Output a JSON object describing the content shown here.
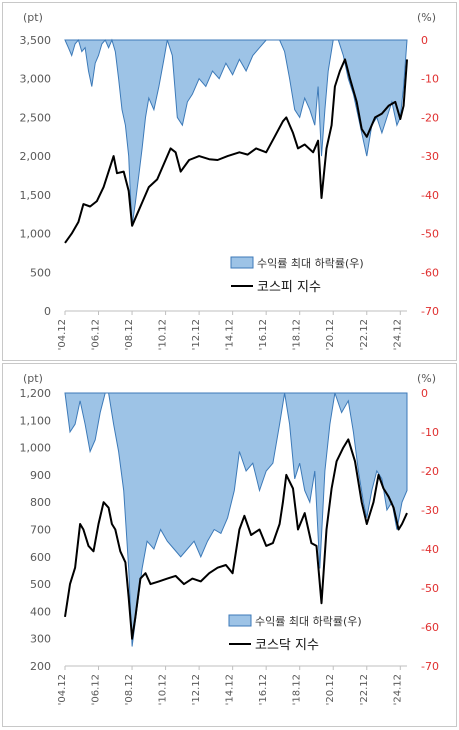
{
  "chart_data": [
    {
      "type": "line",
      "left_unit": "(pt)",
      "right_unit": "(%)",
      "left_ticks": [
        "0",
        "500",
        "1,000",
        "1,500",
        "2,000",
        "2,500",
        "3,000",
        "3,500"
      ],
      "right_ticks": [
        "0",
        "-10",
        "-20",
        "-30",
        "-40",
        "-50",
        "-60",
        "-70"
      ],
      "ylim_left": [
        0,
        3500
      ],
      "ylim_right": [
        -70,
        0
      ],
      "x_ticks": [
        "'04.12",
        "'06.12",
        "'08.12",
        "'10.12",
        "'12.12",
        "'14.12",
        "'16.12",
        "'18.12",
        "'20.12",
        "'22.12",
        "'24.12"
      ],
      "xlim": [
        2004.9,
        2025.3
      ],
      "legend": [
        "수익률 최대 하락률(우)",
        "코스피 지수"
      ],
      "colors": {
        "area": "#9dc3e6",
        "area_edge": "#3d7ab8",
        "line": "#000000",
        "right_axis": "#e03030"
      },
      "series": [
        {
          "name": "코스피 지수",
          "axis": "left",
          "x": [
            2004.9,
            2005.3,
            2005.7,
            2006.0,
            2006.4,
            2006.8,
            2007.2,
            2007.5,
            2007.8,
            2008.0,
            2008.4,
            2008.7,
            2008.9,
            2009.2,
            2009.5,
            2009.9,
            2010.4,
            2010.8,
            2011.2,
            2011.5,
            2011.8,
            2012.3,
            2012.9,
            2013.5,
            2014.0,
            2014.6,
            2015.3,
            2015.8,
            2016.3,
            2016.9,
            2017.4,
            2017.9,
            2018.1,
            2018.5,
            2018.8,
            2019.2,
            2019.7,
            2020.0,
            2020.2,
            2020.5,
            2020.8,
            2021.0,
            2021.3,
            2021.6,
            2021.9,
            2022.3,
            2022.6,
            2022.9,
            2023.4,
            2023.8,
            2024.2,
            2024.6,
            2024.9,
            2025.1,
            2025.3
          ],
          "values": [
            880,
            1000,
            1150,
            1380,
            1350,
            1420,
            1600,
            1800,
            2000,
            1780,
            1800,
            1550,
            1100,
            1250,
            1400,
            1600,
            1700,
            1900,
            2100,
            2050,
            1800,
            1950,
            2000,
            1960,
            1950,
            2000,
            2050,
            2020,
            2100,
            2050,
            2250,
            2450,
            2500,
            2300,
            2100,
            2150,
            2050,
            2200,
            1460,
            2100,
            2400,
            2900,
            3100,
            3250,
            3000,
            2700,
            2350,
            2250,
            2500,
            2550,
            2650,
            2700,
            2480,
            2650,
            3250
          ]
        },
        {
          "name": "수익률 최대 하락률(우)",
          "axis": "right",
          "x": [
            2004.9,
            2005.1,
            2005.3,
            2005.5,
            2005.7,
            2005.9,
            2006.1,
            2006.3,
            2006.5,
            2006.7,
            2006.9,
            2007.1,
            2007.3,
            2007.5,
            2007.7,
            2007.9,
            2008.1,
            2008.3,
            2008.5,
            2008.7,
            2008.8,
            2008.9,
            2009.1,
            2009.3,
            2009.5,
            2009.7,
            2009.9,
            2010.2,
            2010.5,
            2010.8,
            2011.0,
            2011.3,
            2011.6,
            2011.9,
            2012.2,
            2012.5,
            2012.9,
            2013.3,
            2013.7,
            2014.1,
            2014.5,
            2014.9,
            2015.3,
            2015.7,
            2016.1,
            2016.5,
            2016.9,
            2017.3,
            2017.7,
            2018.0,
            2018.3,
            2018.6,
            2018.9,
            2019.2,
            2019.5,
            2019.8,
            2020.0,
            2020.2,
            2020.4,
            2020.6,
            2020.9,
            2021.2,
            2021.5,
            2021.8,
            2022.1,
            2022.4,
            2022.7,
            2022.9,
            2023.2,
            2023.5,
            2023.8,
            2024.1,
            2024.4,
            2024.7,
            2024.9,
            2025.1,
            2025.3
          ],
          "values": [
            0,
            -2,
            -4,
            -1,
            0,
            -3,
            -2,
            -8,
            -12,
            -6,
            -4,
            -1,
            0,
            -2,
            0,
            -3,
            -10,
            -18,
            -22,
            -30,
            -40,
            -48,
            -42,
            -35,
            -28,
            -20,
            -15,
            -18,
            -12,
            -5,
            0,
            -4,
            -20,
            -22,
            -16,
            -14,
            -10,
            -12,
            -8,
            -10,
            -6,
            -9,
            -5,
            -8,
            -4,
            -2,
            0,
            0,
            0,
            -3,
            -10,
            -18,
            -20,
            -15,
            -18,
            -22,
            -12,
            -30,
            -18,
            -8,
            0,
            0,
            -4,
            -10,
            -14,
            -20,
            -26,
            -30,
            -22,
            -20,
            -24,
            -20,
            -16,
            -22,
            -20,
            -12,
            0
          ]
        }
      ]
    },
    {
      "type": "line",
      "left_unit": "(pt)",
      "right_unit": "(%)",
      "left_ticks": [
        "200",
        "300",
        "400",
        "500",
        "600",
        "700",
        "800",
        "900",
        "1,000",
        "1,100",
        "1,200"
      ],
      "right_ticks": [
        "0",
        "-10",
        "-20",
        "-30",
        "-40",
        "-50",
        "-60",
        "-70"
      ],
      "ylim_left": [
        200,
        1200
      ],
      "ylim_right": [
        -70,
        0
      ],
      "x_ticks": [
        "'04.12",
        "'06.12",
        "'08.12",
        "'10.12",
        "'12.12",
        "'14.12",
        "'16.12",
        "'18.12",
        "'20.12",
        "'22.12",
        "'24.12"
      ],
      "xlim": [
        2004.9,
        2025.3
      ],
      "legend": [
        "수익률 최대 하락률(우)",
        "코스닥 지수"
      ],
      "colors": {
        "area": "#9dc3e6",
        "area_edge": "#3d7ab8",
        "line": "#000000",
        "right_axis": "#e03030"
      },
      "series": [
        {
          "name": "코스닥 지수",
          "axis": "left",
          "x": [
            2004.9,
            2005.2,
            2005.5,
            2005.8,
            2006.0,
            2006.3,
            2006.6,
            2006.9,
            2007.2,
            2007.5,
            2007.7,
            2007.9,
            2008.2,
            2008.5,
            2008.7,
            2008.9,
            2009.1,
            2009.4,
            2009.7,
            2010.0,
            2010.5,
            2011.0,
            2011.5,
            2012.0,
            2012.5,
            2013.0,
            2013.5,
            2014.0,
            2014.5,
            2014.9,
            2015.3,
            2015.6,
            2016.0,
            2016.5,
            2016.9,
            2017.3,
            2017.7,
            2017.9,
            2018.1,
            2018.5,
            2018.8,
            2019.2,
            2019.6,
            2019.9,
            2020.2,
            2020.5,
            2020.8,
            2021.1,
            2021.5,
            2021.8,
            2022.2,
            2022.6,
            2022.9,
            2023.3,
            2023.6,
            2023.9,
            2024.2,
            2024.5,
            2024.8,
            2025.0,
            2025.3
          ],
          "values": [
            380,
            500,
            560,
            720,
            700,
            640,
            620,
            720,
            800,
            780,
            720,
            700,
            620,
            580,
            450,
            300,
            380,
            520,
            540,
            500,
            510,
            520,
            530,
            500,
            520,
            510,
            540,
            560,
            570,
            540,
            700,
            750,
            680,
            700,
            640,
            650,
            720,
            800,
            900,
            850,
            700,
            760,
            650,
            640,
            430,
            700,
            850,
            950,
            1000,
            1030,
            950,
            800,
            720,
            800,
            900,
            850,
            820,
            780,
            700,
            720,
            760
          ]
        },
        {
          "name": "수익률 최대 하락률(우)",
          "axis": "right",
          "x": [
            2004.9,
            2005.2,
            2005.5,
            2005.8,
            2006.1,
            2006.4,
            2006.7,
            2007.0,
            2007.3,
            2007.5,
            2007.8,
            2008.1,
            2008.4,
            2008.7,
            2008.9,
            2009.2,
            2009.5,
            2009.8,
            2010.2,
            2010.6,
            2011.0,
            2011.4,
            2011.8,
            2012.2,
            2012.6,
            2013.0,
            2013.4,
            2013.8,
            2014.2,
            2014.6,
            2015.0,
            2015.3,
            2015.7,
            2016.1,
            2016.5,
            2016.9,
            2017.3,
            2017.7,
            2018.0,
            2018.3,
            2018.6,
            2018.9,
            2019.2,
            2019.5,
            2019.8,
            2020.1,
            2020.4,
            2020.7,
            2021.0,
            2021.4,
            2021.8,
            2022.1,
            2022.4,
            2022.7,
            2022.9,
            2023.2,
            2023.5,
            2023.8,
            2024.1,
            2024.4,
            2024.7,
            2025.0,
            2025.3
          ],
          "values": [
            0,
            -10,
            -8,
            -2,
            -8,
            -15,
            -12,
            -5,
            0,
            0,
            -8,
            -15,
            -25,
            -45,
            -65,
            -55,
            -45,
            -38,
            -40,
            -35,
            -38,
            -40,
            -42,
            -40,
            -38,
            -42,
            -38,
            -35,
            -36,
            -32,
            -25,
            -15,
            -20,
            -18,
            -25,
            -20,
            -18,
            -8,
            0,
            -8,
            -22,
            -18,
            -25,
            -28,
            -20,
            -45,
            -20,
            -8,
            0,
            -5,
            -2,
            -10,
            -20,
            -28,
            -32,
            -25,
            -20,
            -22,
            -30,
            -28,
            -35,
            -28,
            -25
          ]
        }
      ]
    }
  ]
}
